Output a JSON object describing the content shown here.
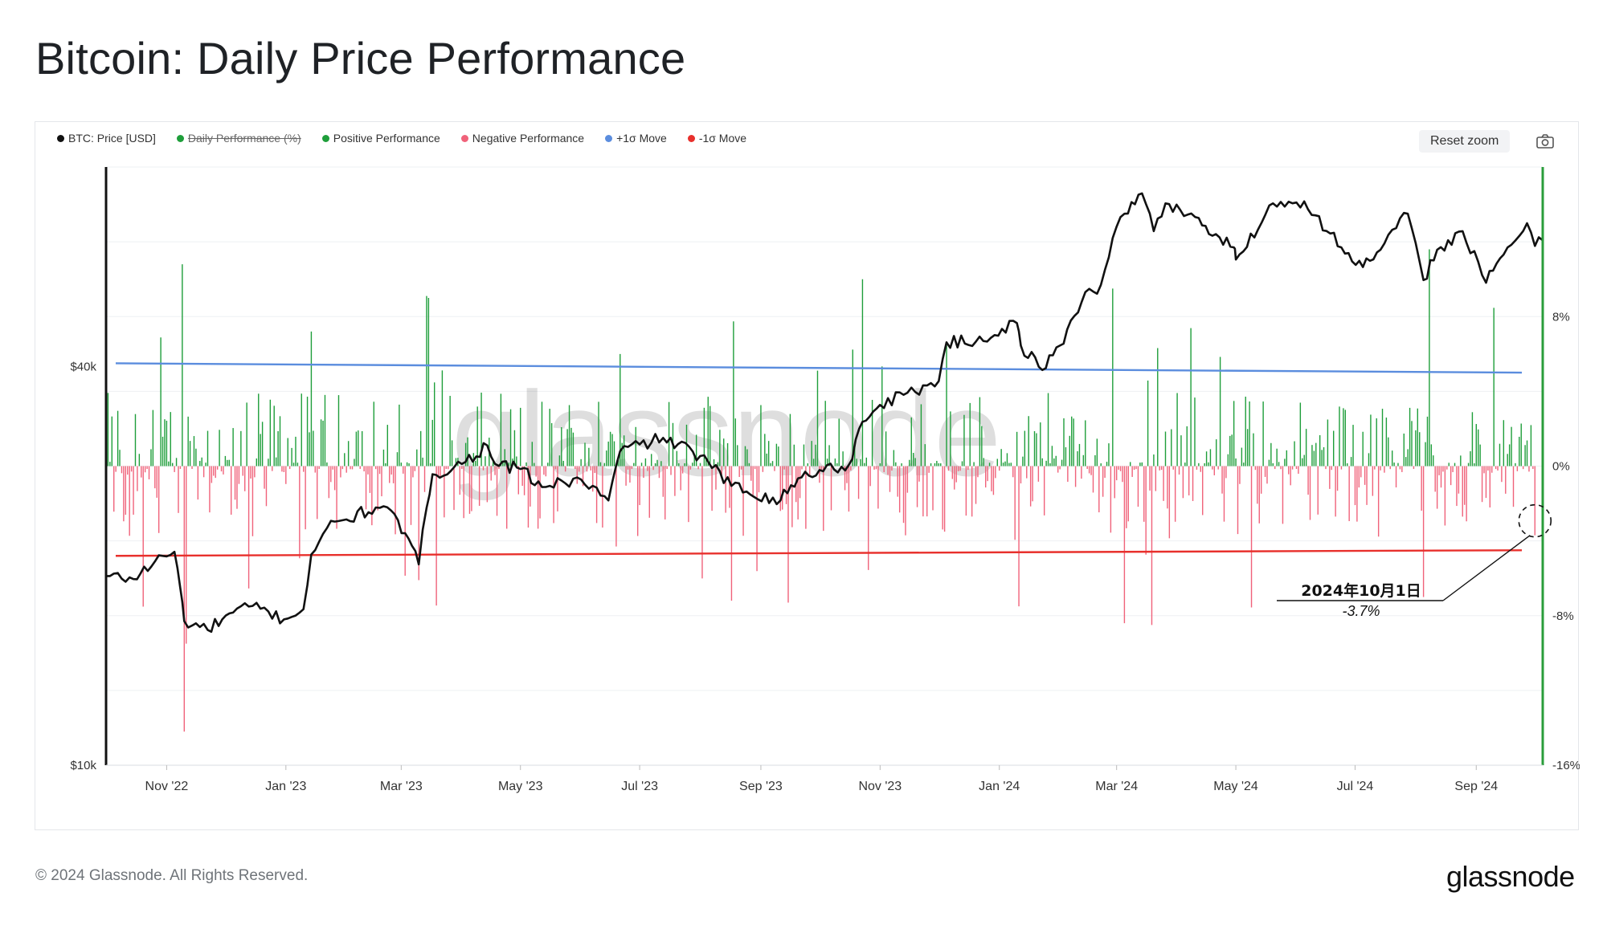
{
  "title": "Bitcoin: Daily Price Performance",
  "legend": [
    {
      "label": "BTC: Price [USD]",
      "color": "#111111",
      "hidden": false
    },
    {
      "label": "Daily Performance (%)",
      "color": "#1e9e3a",
      "hidden": true
    },
    {
      "label": "Positive Performance",
      "color": "#1e9e3a",
      "hidden": false
    },
    {
      "label": "Negative Performance",
      "color": "#f0627a",
      "hidden": false
    },
    {
      "label": "+1σ Move",
      "color": "#5b8dde",
      "hidden": false
    },
    {
      "label": "-1σ Move",
      "color": "#e8302c",
      "hidden": false
    }
  ],
  "toolbar": {
    "reset_zoom": "Reset zoom",
    "camera_icon": "camera-icon"
  },
  "footer": {
    "copyright": "© 2024 Glassnode. All Rights Reserved.",
    "logo": "glassnode"
  },
  "watermark": "glassnode",
  "colors": {
    "price": "#111111",
    "positive": "#1e9e3a",
    "negative": "#f0627a",
    "plus_sigma": "#5b8dde",
    "minus_sigma": "#e8302c",
    "right_axis": "#2a9d3b"
  },
  "chart_data": {
    "type": "line+bar",
    "title": "Bitcoin: Daily Price Performance",
    "x_range": [
      "2022-10-01",
      "2024-10-05"
    ],
    "x_ticks": [
      {
        "label": "Nov '22",
        "date": "2022-11-01"
      },
      {
        "label": "Jan '23",
        "date": "2023-01-01"
      },
      {
        "label": "Mar '23",
        "date": "2023-03-01"
      },
      {
        "label": "May '23",
        "date": "2023-05-01"
      },
      {
        "label": "Jul '23",
        "date": "2023-07-01"
      },
      {
        "label": "Sep '23",
        "date": "2023-09-01"
      },
      {
        "label": "Nov '23",
        "date": "2023-11-01"
      },
      {
        "label": "Jan '24",
        "date": "2024-01-01"
      },
      {
        "label": "Mar '24",
        "date": "2024-03-01"
      },
      {
        "label": "May '24",
        "date": "2024-05-01"
      },
      {
        "label": "Jul '24",
        "date": "2024-07-01"
      },
      {
        "label": "Sep '24",
        "date": "2024-09-01"
      }
    ],
    "left_axis": {
      "scale": "log",
      "ticks": [
        {
          "label": "$40k",
          "value": 40000
        },
        {
          "label": "$10k",
          "value": 10000
        }
      ],
      "range": [
        10000,
        80000
      ]
    },
    "right_axis": {
      "unit": "%",
      "ticks": [
        {
          "label": "8%",
          "value": 8
        },
        {
          "label": "0%",
          "value": 0
        },
        {
          "label": "-8%",
          "value": -8
        },
        {
          "label": "-16%",
          "value": -16
        }
      ],
      "range": [
        -16,
        16
      ]
    },
    "price_series": {
      "name": "BTC: Price [USD]",
      "points": [
        [
          "2022-10-01",
          19300
        ],
        [
          "2022-10-15",
          19100
        ],
        [
          "2022-10-26",
          20300
        ],
        [
          "2022-11-05",
          21000
        ],
        [
          "2022-11-08",
          18500
        ],
        [
          "2022-11-10",
          16500
        ],
        [
          "2022-11-22",
          16000
        ],
        [
          "2022-12-05",
          17000
        ],
        [
          "2022-12-15",
          17400
        ],
        [
          "2022-12-31",
          16600
        ],
        [
          "2023-01-10",
          17200
        ],
        [
          "2023-01-14",
          20800
        ],
        [
          "2023-01-22",
          22800
        ],
        [
          "2023-02-01",
          23500
        ],
        [
          "2023-02-16",
          24500
        ],
        [
          "2023-02-20",
          24600
        ],
        [
          "2023-03-03",
          22400
        ],
        [
          "2023-03-10",
          20100
        ],
        [
          "2023-03-14",
          24500
        ],
        [
          "2023-03-17",
          27500
        ],
        [
          "2023-04-01",
          28500
        ],
        [
          "2023-04-14",
          30400
        ],
        [
          "2023-04-20",
          28300
        ],
        [
          "2023-05-01",
          28000
        ],
        [
          "2023-05-12",
          26300
        ],
        [
          "2023-06-01",
          27000
        ],
        [
          "2023-06-15",
          25100
        ],
        [
          "2023-06-21",
          29800
        ],
        [
          "2023-07-01",
          30500
        ],
        [
          "2023-07-13",
          31200
        ],
        [
          "2023-08-01",
          29300
        ],
        [
          "2023-08-17",
          26400
        ],
        [
          "2023-09-11",
          25100
        ],
        [
          "2023-09-20",
          27100
        ],
        [
          "2023-10-01",
          27900
        ],
        [
          "2023-10-16",
          28400
        ],
        [
          "2023-10-23",
          33000
        ],
        [
          "2023-11-01",
          35000
        ],
        [
          "2023-11-15",
          36500
        ],
        [
          "2023-12-01",
          38000
        ],
        [
          "2023-12-05",
          43500
        ],
        [
          "2023-12-20",
          43600
        ],
        [
          "2024-01-10",
          46500
        ],
        [
          "2024-01-12",
          43000
        ],
        [
          "2024-01-23",
          39500
        ],
        [
          "2024-02-01",
          43000
        ],
        [
          "2024-02-14",
          51800
        ],
        [
          "2024-02-20",
          51500
        ],
        [
          "2024-02-28",
          62500
        ],
        [
          "2024-03-05",
          68000
        ],
        [
          "2024-03-14",
          73000
        ],
        [
          "2024-03-20",
          64000
        ],
        [
          "2024-03-26",
          70500
        ],
        [
          "2024-04-12",
          67000
        ],
        [
          "2024-04-19",
          63000
        ],
        [
          "2024-04-30",
          60500
        ],
        [
          "2024-05-01",
          58000
        ],
        [
          "2024-05-20",
          70500
        ],
        [
          "2024-06-05",
          71000
        ],
        [
          "2024-06-24",
          60500
        ],
        [
          "2024-07-05",
          56500
        ],
        [
          "2024-07-14",
          60000
        ],
        [
          "2024-07-28",
          68000
        ],
        [
          "2024-08-05",
          54000
        ],
        [
          "2024-08-12",
          60000
        ],
        [
          "2024-08-25",
          64000
        ],
        [
          "2024-09-06",
          53500
        ],
        [
          "2024-09-15",
          59000
        ],
        [
          "2024-09-27",
          65800
        ],
        [
          "2024-10-01",
          60800
        ],
        [
          "2024-10-05",
          62000
        ]
      ]
    },
    "sigma_series": [
      {
        "name": "+1σ Move",
        "start": 5.5,
        "end": 5.0
      },
      {
        "name": "-1σ Move",
        "start": -4.8,
        "end": -4.5
      }
    ],
    "performance_bars": {
      "name": "Daily Performance (%)",
      "notable_values": [
        [
          "2022-11-09",
          10.8
        ],
        [
          "2022-11-10",
          -14.2
        ],
        [
          "2022-11-11",
          -9.5
        ],
        [
          "2023-01-14",
          7.2
        ],
        [
          "2023-03-10",
          -6.1
        ],
        [
          "2023-03-14",
          9.1
        ],
        [
          "2023-03-15",
          9.0
        ],
        [
          "2023-06-21",
          6.0
        ],
        [
          "2023-08-17",
          -7.2
        ],
        [
          "2023-10-23",
          10.0
        ],
        [
          "2023-12-05",
          6.6
        ],
        [
          "2024-01-11",
          -7.5
        ],
        [
          "2024-02-28",
          9.5
        ],
        [
          "2024-03-05",
          -8.4
        ],
        [
          "2024-03-19",
          -8.5
        ],
        [
          "2024-08-05",
          -7.0
        ],
        [
          "2024-08-08",
          11.6
        ],
        [
          "2024-10-01",
          -3.7
        ]
      ]
    },
    "annotation": {
      "date": "2024-10-01",
      "label": "2024年10月1日",
      "value_label": "-3.7%",
      "value": -3.7
    }
  }
}
